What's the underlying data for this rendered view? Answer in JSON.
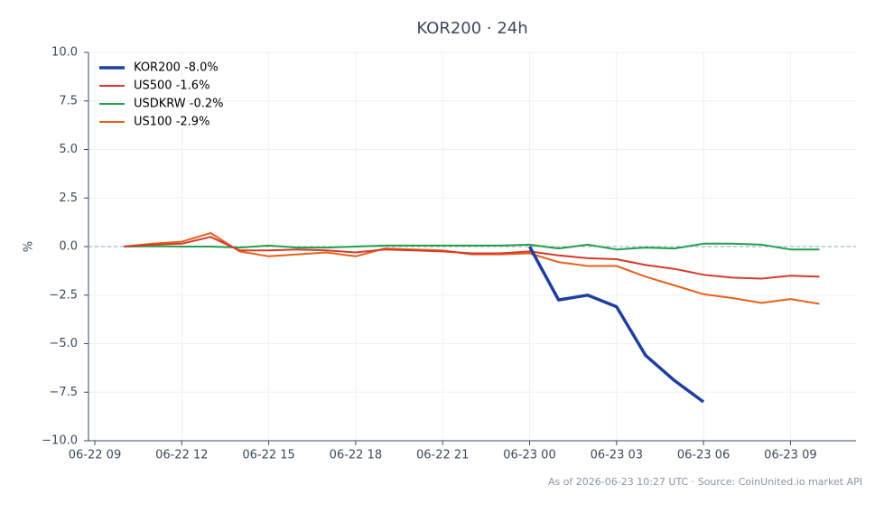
{
  "chart_data": {
    "type": "line",
    "title": "KOR200 · 24h",
    "y_label": "%",
    "footer": "As of 2026-06-23 10:27 UTC · Source: CoinUnited.io market API",
    "categories": [
      "06-22 09",
      null,
      null,
      "06-22 12",
      null,
      null,
      "06-22 15",
      null,
      null,
      "06-22 18",
      null,
      null,
      "06-22 21",
      null,
      null,
      "06-23 00",
      null,
      null,
      "06-23 03",
      null,
      null,
      "06-23 06",
      null,
      null,
      "06-23 09",
      null
    ],
    "ylim": [
      -10,
      10
    ],
    "yticks": [
      {
        "value": -10,
        "label": "−10.0"
      },
      {
        "value": -7.5,
        "label": "−7.5"
      },
      {
        "value": -5,
        "label": "−5.0"
      },
      {
        "value": -2.5,
        "label": "−2.5"
      },
      {
        "value": 0,
        "label": "0.0"
      },
      {
        "value": 2.5,
        "label": "2.5"
      },
      {
        "value": 5,
        "label": "5.0"
      },
      {
        "value": 7.5,
        "label": "7.5"
      },
      {
        "value": 10,
        "label": "10.0"
      }
    ],
    "grid": true,
    "legend": "upper left",
    "series": [
      {
        "name": "KOR200 -8.0%",
        "color": "#1f3fa0",
        "values": [
          null,
          null,
          null,
          null,
          null,
          null,
          null,
          null,
          null,
          null,
          null,
          null,
          null,
          null,
          null,
          0,
          -2.75,
          -2.5,
          -3.1,
          -5.6,
          -6.9,
          -8.0,
          null,
          null,
          null,
          null
        ]
      },
      {
        "name": "US500 -1.6%",
        "color": "#d63a2a",
        "values": [
          null,
          0,
          0.1,
          0.15,
          0.5,
          -0.2,
          -0.2,
          -0.15,
          -0.2,
          -0.3,
          -0.15,
          -0.2,
          -0.25,
          -0.35,
          -0.35,
          -0.25,
          -0.45,
          -0.6,
          -0.65,
          -0.95,
          -1.15,
          -1.45,
          -1.6,
          -1.65,
          -1.5,
          -1.55
        ]
      },
      {
        "name": "USDKRW -0.2%",
        "color": "#22a04a",
        "values": [
          null,
          0,
          0.02,
          0,
          0,
          -0.05,
          0.05,
          -0.05,
          -0.05,
          0,
          0.05,
          0.05,
          0.05,
          0.05,
          0.05,
          0.1,
          -0.1,
          0.1,
          -0.15,
          -0.05,
          -0.1,
          0.15,
          0.15,
          0.1,
          -0.15,
          -0.15
        ]
      },
      {
        "name": "US100 -2.9%",
        "color": "#e8601c",
        "values": [
          null,
          0,
          0.15,
          0.25,
          0.7,
          -0.25,
          -0.5,
          -0.4,
          -0.3,
          -0.5,
          -0.1,
          -0.15,
          -0.2,
          -0.4,
          -0.4,
          -0.35,
          -0.8,
          -1.0,
          -1.0,
          -1.55,
          -2.0,
          -2.45,
          -2.65,
          -2.9,
          -2.7,
          -2.95
        ]
      }
    ]
  }
}
